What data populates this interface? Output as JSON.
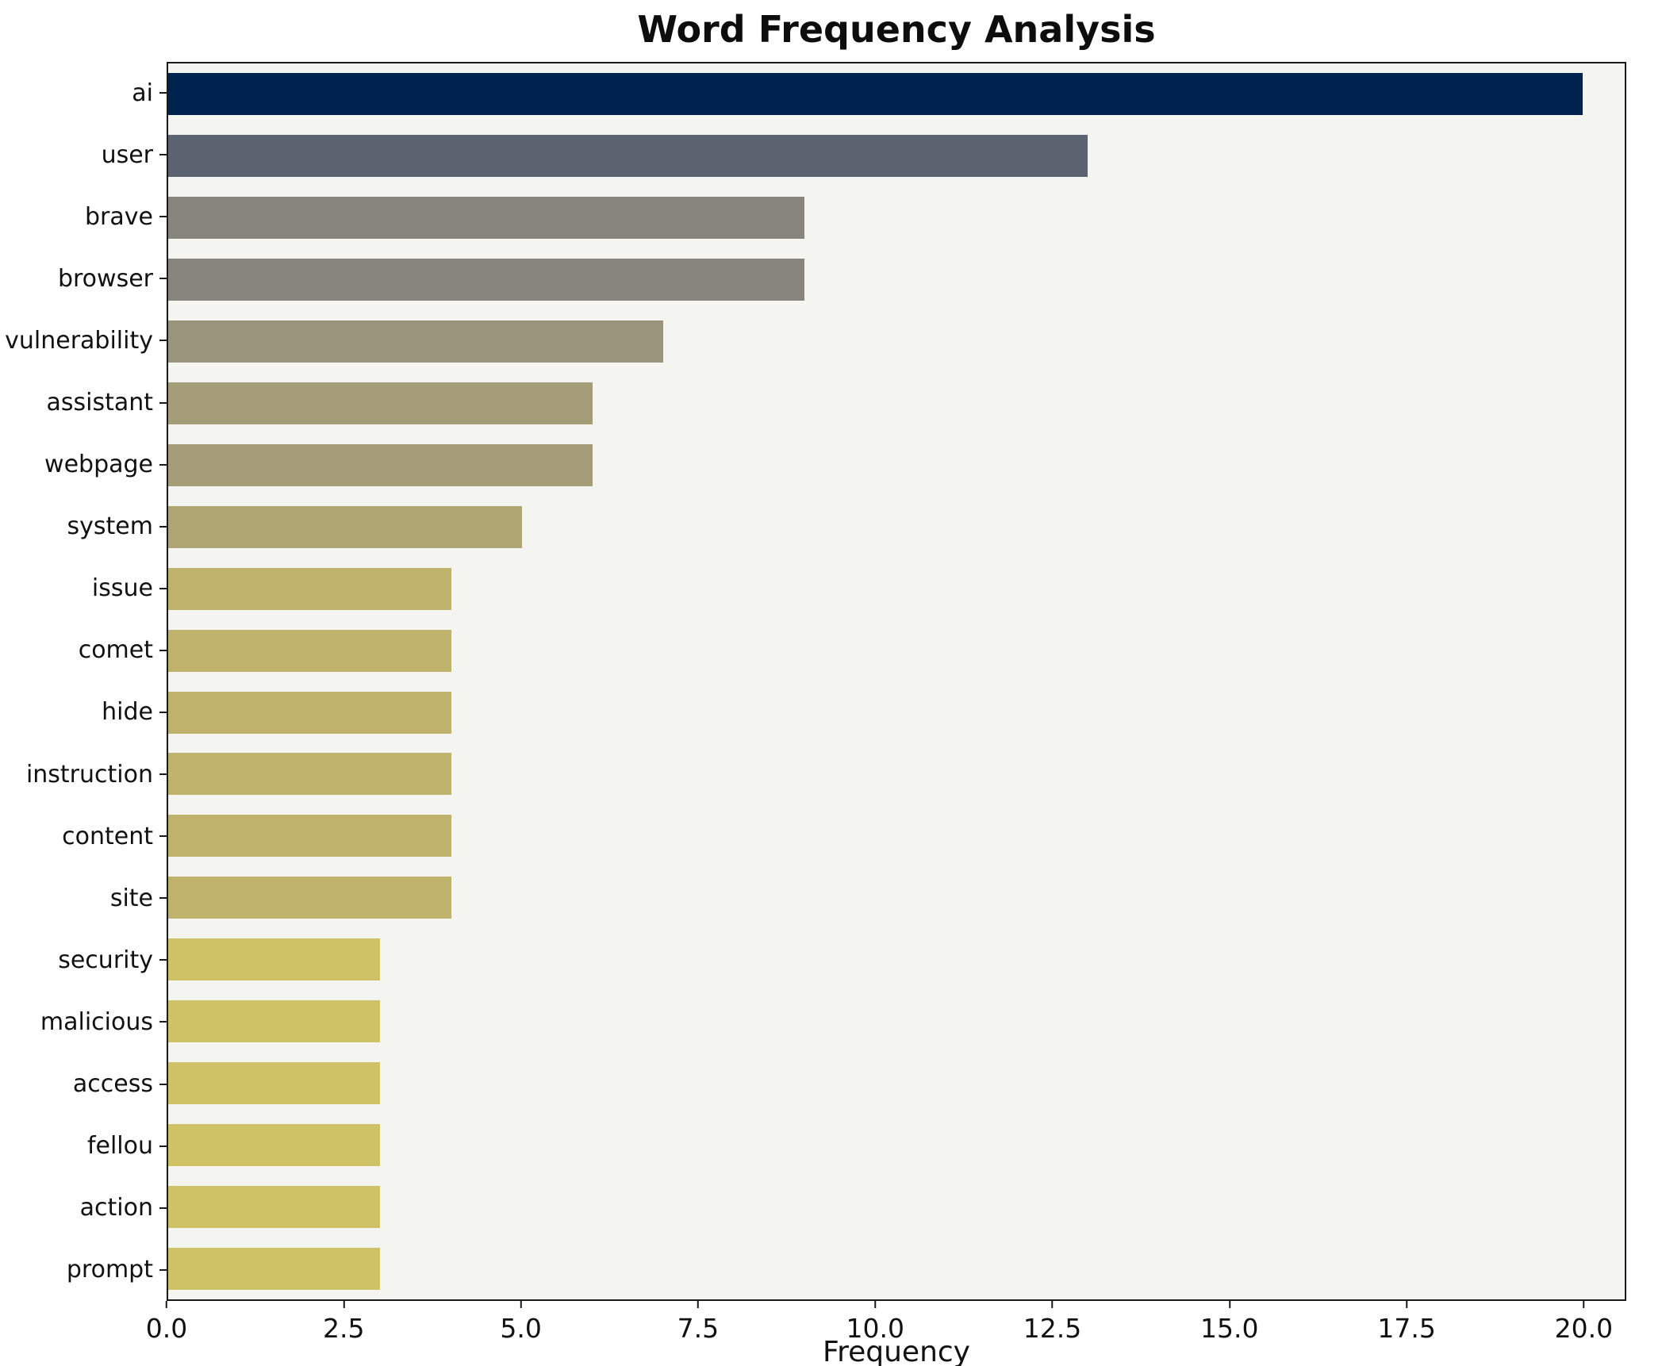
{
  "chart_data": {
    "type": "bar",
    "orientation": "horizontal",
    "title": "Word Frequency Analysis",
    "xlabel": "Frequency",
    "ylabel": "",
    "grid": false,
    "legend": false,
    "plot_background": "#f4f4f1",
    "xlim": [
      0,
      20.6
    ],
    "x_ticks": [
      {
        "value": 0,
        "label": "0.0"
      },
      {
        "value": 2.5,
        "label": "2.5"
      },
      {
        "value": 5,
        "label": "5.0"
      },
      {
        "value": 7.5,
        "label": "7.5"
      },
      {
        "value": 10,
        "label": "10.0"
      },
      {
        "value": 12.5,
        "label": "12.5"
      },
      {
        "value": 15,
        "label": "15.0"
      },
      {
        "value": 17.5,
        "label": "17.5"
      },
      {
        "value": 20,
        "label": "20.0"
      }
    ],
    "categories": [
      "ai",
      "user",
      "brave",
      "browser",
      "vulnerability",
      "assistant",
      "webpage",
      "system",
      "issue",
      "comet",
      "hide",
      "instruction",
      "content",
      "site",
      "security",
      "malicious",
      "access",
      "fellou",
      "action",
      "prompt"
    ],
    "values": [
      20,
      13,
      9,
      9,
      7,
      6,
      6,
      5,
      4,
      4,
      4,
      4,
      4,
      4,
      3,
      3,
      3,
      3,
      3,
      3
    ],
    "bar_colors": [
      "#00224e",
      "#5c6370",
      "#87847c",
      "#87847c",
      "#9a947b",
      "#a59d77",
      "#a59d77",
      "#aea573",
      "#bfb26c",
      "#bfb26c",
      "#bfb26c",
      "#bfb26c",
      "#bfb26c",
      "#bfb26c",
      "#cfc166",
      "#cfc166",
      "#cfc166",
      "#cfc166",
      "#cfc166",
      "#cfc166"
    ]
  }
}
